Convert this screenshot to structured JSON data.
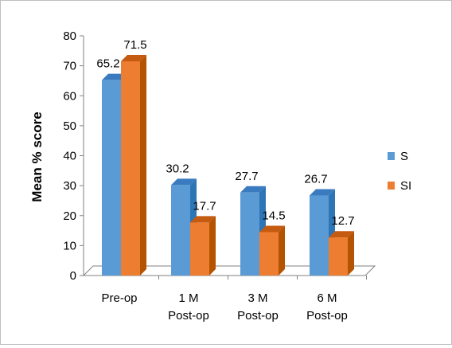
{
  "chart_data": {
    "type": "bar",
    "title": "",
    "xlabel": "",
    "ylabel": "Mean % score",
    "ylim": [
      0,
      80
    ],
    "yticks": [
      0,
      10,
      20,
      30,
      40,
      50,
      60,
      70,
      80
    ],
    "grid": false,
    "style": "3d-clustered-column",
    "legend_position": "right",
    "categories": [
      [
        "Pre-op"
      ],
      [
        "1 M",
        "Post-op"
      ],
      [
        "3 M",
        "Post-op"
      ],
      [
        "6 M",
        "Post-op"
      ]
    ],
    "series": [
      {
        "name": "S",
        "color": "#5b9bd5",
        "side_color": "#2e75b6",
        "top_color": "#3a7bbf",
        "values": [
          65.2,
          30.2,
          27.7,
          26.7
        ]
      },
      {
        "name": "SI",
        "color": "#ed7d31",
        "side_color": "#b45300",
        "top_color": "#c55a11",
        "values": [
          71.5,
          17.7,
          14.5,
          12.7
        ]
      }
    ]
  }
}
